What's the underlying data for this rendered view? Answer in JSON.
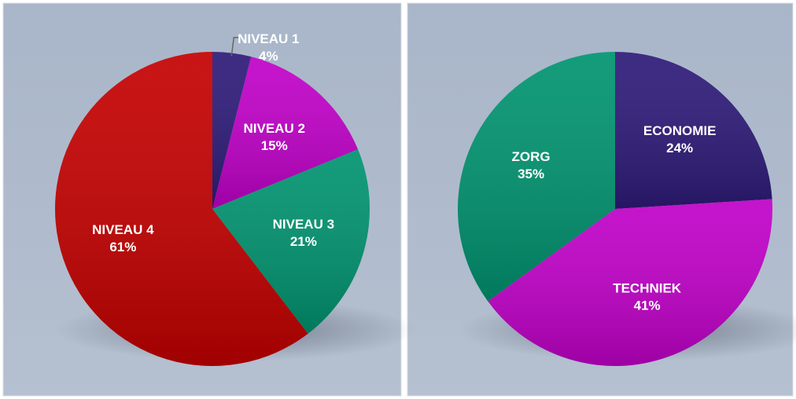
{
  "chart_data": [
    {
      "type": "pie",
      "categories": [
        "NIVEAU 1",
        "NIVEAU 2",
        "NIVEAU 3",
        "NIVEAU 4"
      ],
      "values": [
        4,
        15,
        21,
        61
      ],
      "value_labels": [
        "4%",
        "15%",
        "21%",
        "61%"
      ],
      "colors": [
        "#2d1a78",
        "#c000c8",
        "#00936f",
        "#c40000"
      ]
    },
    {
      "type": "pie",
      "categories": [
        "ECONOMIE",
        "TECHNIEK",
        "ZORG"
      ],
      "values": [
        24,
        41,
        35
      ],
      "value_labels": [
        "24%",
        "41%",
        "35%"
      ],
      "colors": [
        "#2d1a78",
        "#c000c8",
        "#00936f"
      ]
    }
  ]
}
